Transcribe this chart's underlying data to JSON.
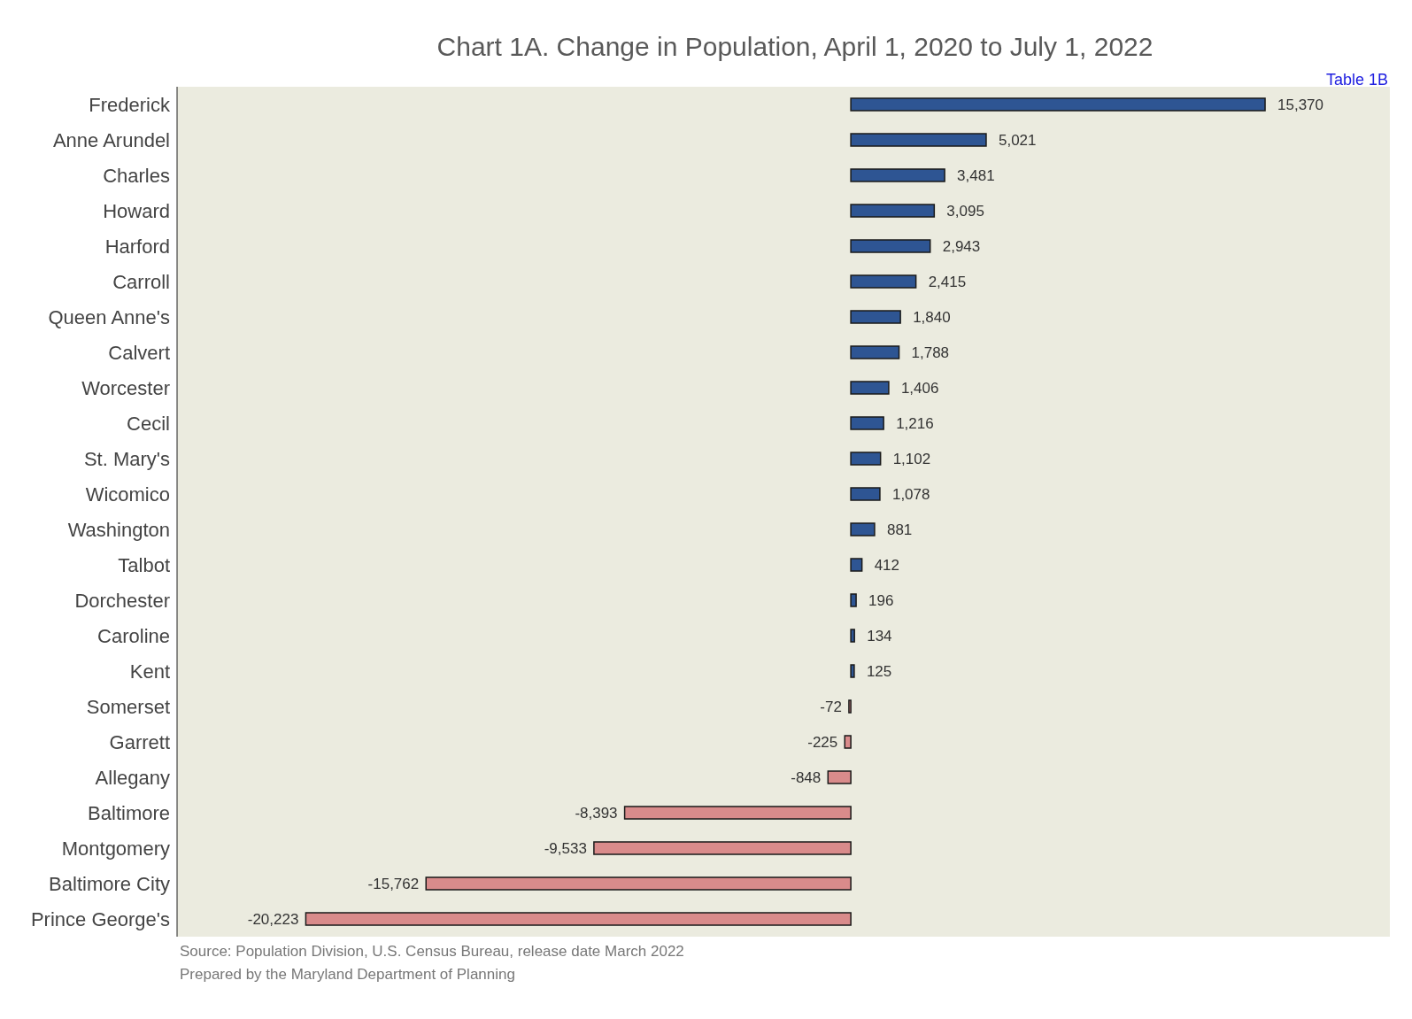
{
  "chart_data": {
    "type": "bar",
    "orientation": "horizontal",
    "title": "Chart 1A. Change in Population, April 1, 2020 to July 1, 2022",
    "categories": [
      "Frederick",
      "Anne Arundel",
      "Charles",
      "Howard",
      "Harford",
      "Carroll",
      "Queen Anne's",
      "Calvert",
      "Worcester",
      "Cecil",
      "St. Mary's",
      "Wicomico",
      "Washington",
      "Talbot",
      "Dorchester",
      "Caroline",
      "Kent",
      "Somerset",
      "Garrett",
      "Allegany",
      "Baltimore",
      "Montgomery",
      "Baltimore City",
      "Prince George's"
    ],
    "values": [
      15370,
      5021,
      3481,
      3095,
      2943,
      2415,
      1840,
      1788,
      1406,
      1216,
      1102,
      1078,
      881,
      412,
      196,
      134,
      125,
      -72,
      -225,
      -848,
      -8393,
      -9533,
      -15762,
      -20223
    ],
    "value_labels": [
      "15,370",
      "5,021",
      "3,481",
      "3,095",
      "2,943",
      "2,415",
      "1,840",
      "1,788",
      "1,406",
      "1,216",
      "1,102",
      "1,078",
      "881",
      "412",
      "196",
      "134",
      "125",
      "-72",
      "-225",
      "-848",
      "-8,393",
      "-9,533",
      "-15,762",
      "-20,223"
    ],
    "colors": [
      "#2e5593",
      "#2e5593",
      "#2e5593",
      "#2e5593",
      "#2e5593",
      "#2e5593",
      "#2e5593",
      "#2e5593",
      "#2e5593",
      "#2e5593",
      "#2e5593",
      "#2e5593",
      "#2e5593",
      "#2e5593",
      "#2e5593",
      "#2e5593",
      "#2e5593",
      "#d98b8b",
      "#d98b8b",
      "#d98b8b",
      "#d98b8b",
      "#d98b8b",
      "#d98b8b",
      "#d98b8b"
    ],
    "xlim": [
      -25000,
      20000
    ],
    "tick_labels": "y",
    "grid": false,
    "annotations": [
      "Table 1B",
      "Source: Population Division, U.S. Census Bureau, release date March 2022",
      "Prepared by the Maryland Department of Planning"
    ]
  }
}
